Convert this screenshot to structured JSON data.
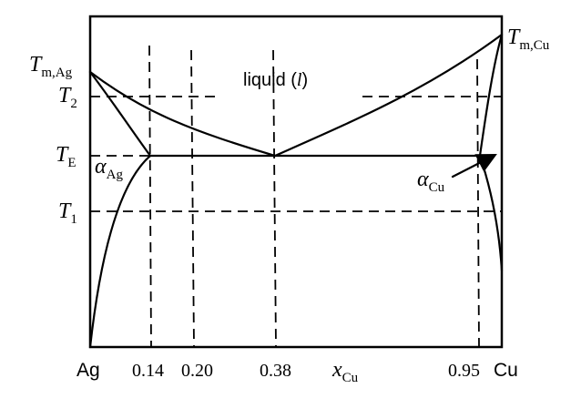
{
  "labels": {
    "t_melt_ag_symbol": "T",
    "t_melt_ag_subscript": "m,Ag",
    "t_melt_cu_symbol": "T",
    "t_melt_cu_subscript": "m,Cu",
    "t2_symbol": "T",
    "t2_subscript": "2",
    "te_symbol": "T",
    "te_subscript": "E",
    "t1_symbol": "T",
    "t1_subscript": "1",
    "liquid_text": "liquid (",
    "liquid_symbol": "l",
    "liquid_close": ")",
    "alpha_ag_symbol": "α",
    "alpha_ag_subscript": "Ag",
    "alpha_cu_symbol": "α",
    "alpha_cu_subscript": "Cu",
    "x_axis_symbol": "x",
    "x_axis_subscript": "Cu",
    "left_end": "Ag",
    "right_end": "Cu"
  },
  "x_ticks": [
    "0.14",
    "0.20",
    "0.38",
    "0.95"
  ],
  "composition": {
    "ag_solvus_limit": 0.14,
    "sample": 0.2,
    "eutectic": 0.38,
    "cu_solvus_limit": 0.95
  },
  "temperature_levels": [
    "T_m,Ag",
    "T_2",
    "T_E",
    "T_1"
  ],
  "colors": {
    "line": "#000000",
    "background": "#ffffff"
  }
}
